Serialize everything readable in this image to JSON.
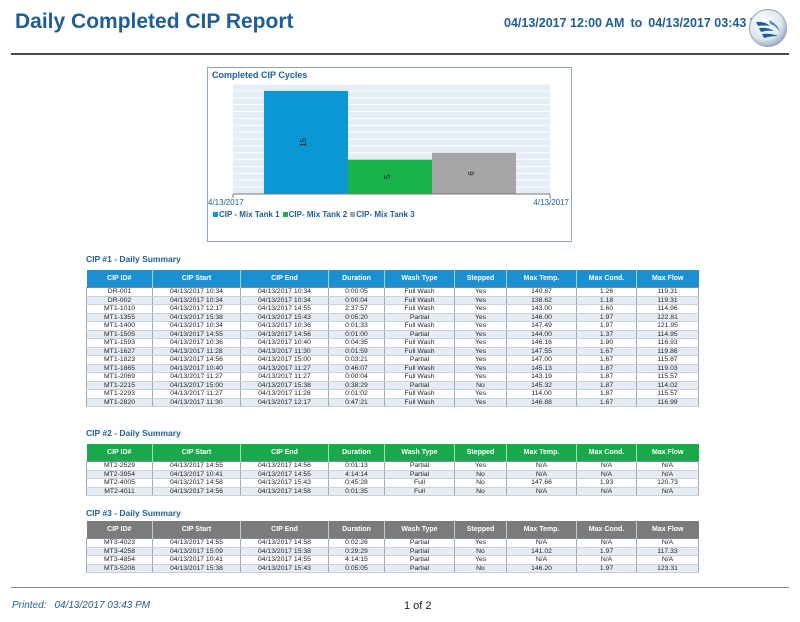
{
  "header": {
    "title": "Daily Completed CIP Report",
    "range_start": "04/13/2017 12:00 AM",
    "range_sep": "to",
    "range_end": "04/13/2017 03:43 PM"
  },
  "chart_data": {
    "type": "bar",
    "title": "Completed CIP Cycles",
    "x_start_label": "4/13/2017",
    "x_end_label": "4/13/2017",
    "ylim": [
      0,
      16
    ],
    "series": [
      {
        "name": "CIP - Mix Tank 1",
        "value": 15,
        "color": "#0b96d4"
      },
      {
        "name": "CIP- Mix Tank 2",
        "value": 5,
        "color": "#19b24b"
      },
      {
        "name": "CIP- Mix Tank 3",
        "value": 6,
        "color": "#a6a6a6"
      }
    ]
  },
  "columns": [
    "CIP ID#",
    "CIP Start",
    "CIP End",
    "Duration",
    "Wash Type",
    "Stepped",
    "Max Temp.",
    "Max Cond.",
    "Max Flow"
  ],
  "sections": [
    {
      "title": "CIP #1 - Daily Summary",
      "color": "#1b8fcf",
      "rows": [
        [
          "DR-001",
          "04/13/2017 10:34",
          "04/13/2017 10:34",
          "0:00:05",
          "Full Wash",
          "Yes",
          "140.87",
          "1.26",
          "119.31"
        ],
        [
          "DR-002",
          "04/13/2017 10:34",
          "04/13/2017 10:34",
          "0:00:04",
          "Full Wash",
          "Yes",
          "138.62",
          "1.18",
          "119.31"
        ],
        [
          "MT1-1010",
          "04/13/2017 12:17",
          "04/13/2017 14:55",
          "2:37:57",
          "Full Wash",
          "Yes",
          "143.00",
          "1.60",
          "114.96"
        ],
        [
          "MT1-1355",
          "04/13/2017 15:38",
          "04/13/2017 15:43",
          "0:05:20",
          "Partial",
          "Yes",
          "146.00",
          "1.97",
          "122.81"
        ],
        [
          "MT1-1400",
          "04/13/2017 10:34",
          "04/13/2017 10:36",
          "0:01:33",
          "Full Wash",
          "Yes",
          "147.49",
          "1.97",
          "121.95"
        ],
        [
          "MT1-1505",
          "04/13/2017 14:55",
          "04/13/2017 14:56",
          "0:01:00",
          "Partial",
          "Yes",
          "144.00",
          "1.37",
          "114.95"
        ],
        [
          "MT1-1593",
          "04/13/2017 10:36",
          "04/13/2017 10:40",
          "0:04:35",
          "Full Wash",
          "Yes",
          "146.16",
          "1.90",
          "116.93"
        ],
        [
          "MT1-1627",
          "04/13/2017 11:28",
          "04/13/2017 11:30",
          "0:01:59",
          "Full Wash",
          "Yes",
          "147.55",
          "1.67",
          "119.86"
        ],
        [
          "MT1-1823",
          "04/13/2017 14:56",
          "04/13/2017 15:00",
          "0:03:21",
          "Partial",
          "Yes",
          "147.00",
          "1.67",
          "115.87"
        ],
        [
          "MT1-1865",
          "04/13/2017 10:40",
          "04/13/2017 11:27",
          "0:46:07",
          "Full Wash",
          "Yes",
          "145.13",
          "1.87",
          "119.03"
        ],
        [
          "MT1-2069",
          "04/13/2017 11:27",
          "04/13/2017 11:27",
          "0:00:04",
          "Full Wash",
          "Yes",
          "143.19",
          "1.87",
          "115.57"
        ],
        [
          "MT1-2215",
          "04/13/2017 15:00",
          "04/13/2017 15:38",
          "0:38:29",
          "Partial",
          "No",
          "145.32",
          "1.87",
          "114.02"
        ],
        [
          "MT1-2293",
          "04/13/2017 11:27",
          "04/13/2017 11:28",
          "0:01:02",
          "Full Wash",
          "Yes",
          "114.00",
          "1.87",
          "115.57"
        ],
        [
          "MT1-2820",
          "04/13/2017 11:30",
          "04/13/2017 12:17",
          "0:47:21",
          "Full Wash",
          "Yes",
          "146.88",
          "1.67",
          "116.99"
        ]
      ]
    },
    {
      "title": "CIP #2 - Daily Summary",
      "color": "#19a94a",
      "rows": [
        [
          "MT2-2529",
          "04/13/2017 14:55",
          "04/13/2017 14:56",
          "0:01:13",
          "Partial",
          "Yes",
          "N/A",
          "N/A",
          "N/A"
        ],
        [
          "MT2-3954",
          "04/13/2017 10:41",
          "04/13/2017 14:55",
          "4:14:14",
          "Partial",
          "No",
          "N/A",
          "N/A",
          "N/A"
        ],
        [
          "MT2-4005",
          "04/13/2017 14:58",
          "04/13/2017 15:43",
          "0:45:28",
          "Full",
          "No",
          "147.66",
          "1.93",
          "120.73"
        ],
        [
          "MT2-4011",
          "04/13/2017 14:56",
          "04/13/2017 14:58",
          "0:01:35",
          "Full",
          "No",
          "N/A",
          "N/A",
          "N/A"
        ]
      ]
    },
    {
      "title": "CIP #3 - Daily Summary",
      "color": "#7b7b7b",
      "rows": [
        [
          "MT3-4023",
          "04/13/2017 14:55",
          "04/13/2017 14:58",
          "0:02:26",
          "Partial",
          "Yes",
          "N/A",
          "N/A",
          "N/A"
        ],
        [
          "MT3-4258",
          "04/13/2017 15:09",
          "04/13/2017 15:38",
          "0:29:29",
          "Partial",
          "No",
          "141.02",
          "1.97",
          "117.33"
        ],
        [
          "MT3-4854",
          "04/13/2017 10:41",
          "04/13/2017 14:55",
          "4:14:15",
          "Partial",
          "Yes",
          "N/A",
          "N/A",
          "N/A"
        ],
        [
          "MT3-5208",
          "04/13/2017 15:38",
          "04/13/2017 15:43",
          "0:05:05",
          "Partial",
          "No",
          "146.20",
          "1.97",
          "123.31"
        ]
      ]
    }
  ],
  "footer": {
    "printed_label": "Printed:",
    "printed_value": "04/13/2017 03:43 PM",
    "page": "1 of 2"
  }
}
